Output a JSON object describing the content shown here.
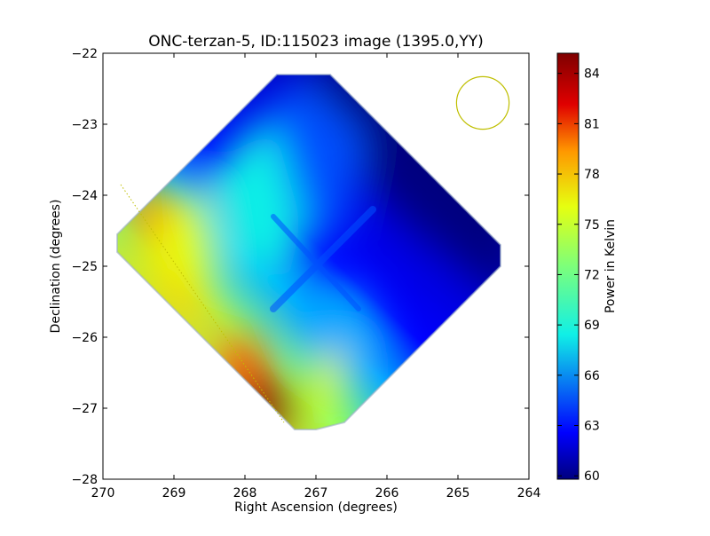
{
  "chart_data": {
    "type": "heatmap",
    "title": "ONC-terzan-5, ID:115023 image (1395.0,YY)",
    "xlabel": "Right Ascension (degrees)",
    "ylabel": "Declination (degrees)",
    "xlim": [
      270,
      264
    ],
    "ylim": [
      -28,
      -22
    ],
    "x_ticks": [
      270,
      269,
      268,
      267,
      266,
      265,
      264
    ],
    "x_tick_labels": [
      "270",
      "269",
      "268",
      "267",
      "266",
      "265",
      "264"
    ],
    "y_ticks": [
      -22,
      -23,
      -24,
      -25,
      -26,
      -27,
      -28
    ],
    "y_tick_labels": [
      "−22",
      "−23",
      "−24",
      "−25",
      "−26",
      "−27",
      "−28"
    ],
    "colorbar": {
      "label": "Power in Kelvin",
      "range": [
        59.8,
        85.2
      ],
      "ticks": [
        60,
        63,
        66,
        69,
        72,
        75,
        78,
        81,
        84
      ],
      "tick_labels": [
        "60",
        "63",
        "66",
        "69",
        "72",
        "75",
        "78",
        "81",
        "84"
      ],
      "colormap": "jet"
    },
    "map_outline_ra_dec": [
      [
        267.4,
        -22.3
      ],
      [
        266.8,
        -22.3
      ],
      [
        264.4,
        -24.7
      ],
      [
        264.4,
        -25.0
      ],
      [
        266.6,
        -27.2
      ],
      [
        267.0,
        -27.3
      ],
      [
        267.3,
        -27.3
      ],
      [
        269.8,
        -24.8
      ],
      [
        269.8,
        -24.55
      ],
      [
        267.55,
        -22.3
      ]
    ],
    "field_samples": [
      {
        "ra": 266.0,
        "dec": -23.0,
        "kelvin": 62
      },
      {
        "ra": 265.0,
        "dec": -24.5,
        "kelvin": 60
      },
      {
        "ra": 266.5,
        "dec": -25.3,
        "kelvin": 63
      },
      {
        "ra": 267.0,
        "dec": -25.0,
        "kelvin": 66
      },
      {
        "ra": 268.0,
        "dec": -23.8,
        "kelvin": 67
      },
      {
        "ra": 268.8,
        "dec": -24.3,
        "kelvin": 72
      },
      {
        "ra": 269.4,
        "dec": -24.2,
        "kelvin": 80
      },
      {
        "ra": 269.0,
        "dec": -25.2,
        "kelvin": 76
      },
      {
        "ra": 268.0,
        "dec": -26.2,
        "kelvin": 76
      },
      {
        "ra": 267.8,
        "dec": -26.8,
        "kelvin": 83
      },
      {
        "ra": 267.1,
        "dec": -26.8,
        "kelvin": 75
      },
      {
        "ra": 266.3,
        "dec": -26.3,
        "kelvin": 67
      }
    ],
    "beam_circle": {
      "ra": 264.65,
      "dec": -22.7,
      "radius_deg": 0.37,
      "color": "#bfbf00"
    },
    "dotted_line": {
      "from": [
        269.75,
        -23.85
      ],
      "to": [
        267.45,
        -27.2
      ],
      "color": "#bfbf00"
    },
    "colors": {
      "c60": "#00007f",
      "c62": "#0000c8",
      "c63": "#0000ff",
      "c65": "#0050ff",
      "c67": "#00a8ff",
      "c69": "#10f0e6",
      "c72": "#7dff7a",
      "c75": "#e6ff10",
      "c77": "#ffd400",
      "c79": "#ff9800",
      "c81": "#ff4a00",
      "c84": "#e00000",
      "c85": "#7f0000"
    }
  }
}
